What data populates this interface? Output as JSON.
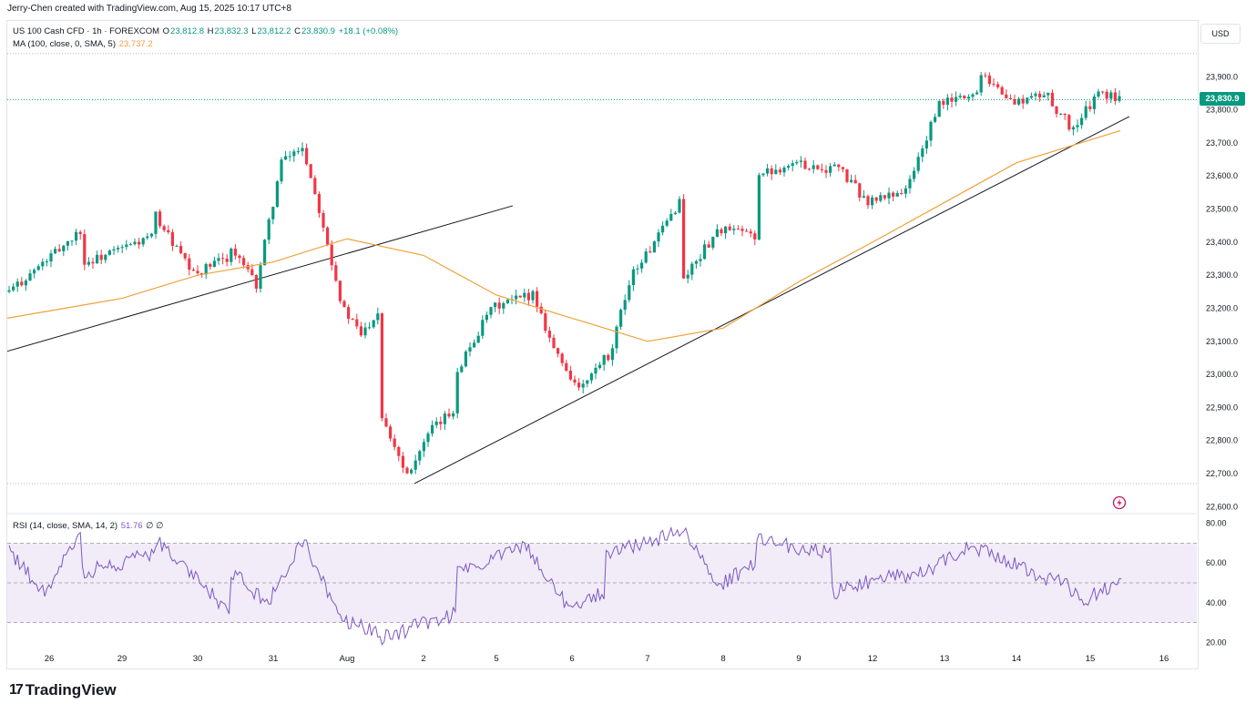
{
  "header": {
    "credit": "Jerry-Chen created with TradingView.com, Aug 15, 2025 10:17 UTC+8"
  },
  "legend": {
    "symbol": "US 100 Cash CFD · 1h · FOREXCOM",
    "o_label": "O",
    "o_value": "23,812.8",
    "h_label": "H",
    "h_value": "23,832.3",
    "l_label": "L",
    "l_value": "23,812.2",
    "c_label": "C",
    "c_value": "23,830.9",
    "change": "+18.1 (+0.08%)",
    "ma_label": "MA (100, close, 0, SMA, 5)",
    "ma_value": "23,737.2",
    "rsi_label": "RSI (14, close, SMA, 14, 2)",
    "rsi_value": "51.76",
    "rsi_extra": "∅ ∅"
  },
  "currency": "USD",
  "last_price_label": "23,830.9",
  "icons": [
    "flash-icon",
    "tradingview-logo-icon"
  ],
  "brand": {
    "wordmark": "TradingView",
    "mark": "17"
  },
  "colors": {
    "up": "#089981",
    "down": "#f23645",
    "ma": "#f0a13a",
    "rsi": "#7e57c2",
    "rsi_band": "#ede7f6",
    "trend": "#131722"
  },
  "chart_data": [
    {
      "type": "candlestick",
      "title": "US 100 Cash CFD · 1h · FOREXCOM",
      "x_tick_labels": [
        "26",
        "29",
        "30",
        "31",
        "Aug",
        "2",
        "5",
        "6",
        "7",
        "8",
        "9",
        "12",
        "13",
        "14",
        "15",
        "16"
      ],
      "y_tick_labels": [
        "23,900.0",
        "23,800.0",
        "23,700.0",
        "23,600.0",
        "23,500.0",
        "23,400.0",
        "23,300.0",
        "23,200.0",
        "23,100.0",
        "23,000.0",
        "22,900.0",
        "22,800.0",
        "22,700.0",
        "22,600.0"
      ],
      "ylim": [
        22590,
        24000
      ],
      "grid": false,
      "last": {
        "open": 23812.8,
        "high": 23832.3,
        "low": 23812.2,
        "close": 23830.9,
        "change": 18.1,
        "change_pct": 0.08
      },
      "anchor_path": [
        {
          "d": "26",
          "p": 23250
        },
        {
          "d": "26",
          "p": 23340
        },
        {
          "d": "26",
          "p": 23440
        },
        {
          "d": "29",
          "p": 23330
        },
        {
          "d": "29",
          "p": 23420
        },
        {
          "d": "30",
          "p": 23480
        },
        {
          "d": "30",
          "p": 23300
        },
        {
          "d": "30",
          "p": 23360
        },
        {
          "d": "31",
          "p": 23380
        },
        {
          "d": "31",
          "p": 23270
        },
        {
          "d": "31",
          "p": 23640
        },
        {
          "d": "31",
          "p": 23700
        },
        {
          "d": "Aug",
          "p": 23660
        },
        {
          "d": "Aug",
          "p": 23450
        },
        {
          "d": "Aug",
          "p": 23200
        },
        {
          "d": "Aug",
          "p": 23120
        },
        {
          "d": "Aug",
          "p": 23200
        },
        {
          "d": "2",
          "p": 22880
        },
        {
          "d": "2",
          "p": 22700
        },
        {
          "d": "2",
          "p": 22830
        },
        {
          "d": "2",
          "p": 22900
        },
        {
          "d": "5",
          "p": 23000
        },
        {
          "d": "5",
          "p": 23200
        },
        {
          "d": "5",
          "p": 23240
        },
        {
          "d": "6",
          "p": 23270
        },
        {
          "d": "6",
          "p": 23070
        },
        {
          "d": "6",
          "p": 22950
        },
        {
          "d": "6",
          "p": 23050
        },
        {
          "d": "7",
          "p": 23000
        },
        {
          "d": "7",
          "p": 23300
        },
        {
          "d": "7",
          "p": 23400
        },
        {
          "d": "7",
          "p": 23530
        },
        {
          "d": "8",
          "p": 23280
        },
        {
          "d": "8",
          "p": 23440
        },
        {
          "d": "8",
          "p": 23420
        },
        {
          "d": "9",
          "p": 23600
        },
        {
          "d": "9",
          "p": 23640
        },
        {
          "d": "9",
          "p": 23620
        },
        {
          "d": "12",
          "p": 23650
        },
        {
          "d": "12",
          "p": 23520
        },
        {
          "d": "12",
          "p": 23560
        },
        {
          "d": "13",
          "p": 23530
        },
        {
          "d": "13",
          "p": 23820
        },
        {
          "d": "13",
          "p": 23850
        },
        {
          "d": "14",
          "p": 23940
        },
        {
          "d": "14",
          "p": 23820
        },
        {
          "d": "14",
          "p": 23850
        },
        {
          "d": "15",
          "p": 23830
        },
        {
          "d": "15",
          "p": 23740
        },
        {
          "d": "15",
          "p": 23850
        },
        {
          "d": "15",
          "p": 23830.9
        }
      ],
      "moving_average": [
        {
          "d": "26",
          "v": 23170
        },
        {
          "d": "29",
          "v": 23230
        },
        {
          "d": "30",
          "v": 23300
        },
        {
          "d": "31",
          "v": 23340
        },
        {
          "d": "Aug",
          "v": 23410
        },
        {
          "d": "2",
          "v": 23360
        },
        {
          "d": "5",
          "v": 23240
        },
        {
          "d": "6",
          "v": 23170
        },
        {
          "d": "7",
          "v": 23100
        },
        {
          "d": "8",
          "v": 23140
        },
        {
          "d": "9",
          "v": 23280
        },
        {
          "d": "12",
          "v": 23400
        },
        {
          "d": "13",
          "v": 23520
        },
        {
          "d": "14",
          "v": 23640
        },
        {
          "d": "15",
          "v": 23737.2
        }
      ],
      "trendlines": [
        {
          "name": "support-1",
          "from": {
            "d": "26",
            "p": 23070
          },
          "to": {
            "d": "5",
            "p": 23510
          }
        },
        {
          "name": "support-2",
          "from": {
            "d": "2",
            "p": 22670
          },
          "to": {
            "d": "15",
            "p": 23780
          }
        }
      ],
      "reference_levels": [
        23970,
        22670
      ]
    },
    {
      "type": "line",
      "title": "RSI (14, close, SMA, 14, 2)",
      "y_tick_labels": [
        "80.00",
        "60.00",
        "40.00",
        "20.00"
      ],
      "ylim": [
        17,
        83
      ],
      "bands": [
        30,
        50,
        70
      ],
      "last": 51.76,
      "anchor_path": [
        {
          "d": "26",
          "v": 65
        },
        {
          "d": "26",
          "v": 45
        },
        {
          "d": "26",
          "v": 75
        },
        {
          "d": "29",
          "v": 55
        },
        {
          "d": "29",
          "v": 65
        },
        {
          "d": "30",
          "v": 72
        },
        {
          "d": "30",
          "v": 35
        },
        {
          "d": "31",
          "v": 55
        },
        {
          "d": "31",
          "v": 40
        },
        {
          "d": "31",
          "v": 75
        },
        {
          "d": "Aug",
          "v": 70
        },
        {
          "d": "Aug",
          "v": 30
        },
        {
          "d": "Aug",
          "v": 25
        },
        {
          "d": "2",
          "v": 22
        },
        {
          "d": "2",
          "v": 35
        },
        {
          "d": "5",
          "v": 55
        },
        {
          "d": "5",
          "v": 70
        },
        {
          "d": "6",
          "v": 65
        },
        {
          "d": "6",
          "v": 38
        },
        {
          "d": "6",
          "v": 45
        },
        {
          "d": "7",
          "v": 65
        },
        {
          "d": "7",
          "v": 75
        },
        {
          "d": "8",
          "v": 78
        },
        {
          "d": "8",
          "v": 48
        },
        {
          "d": "8",
          "v": 60
        },
        {
          "d": "9",
          "v": 72
        },
        {
          "d": "9",
          "v": 65
        },
        {
          "d": "12",
          "v": 45
        },
        {
          "d": "12",
          "v": 55
        },
        {
          "d": "13",
          "v": 50
        },
        {
          "d": "13",
          "v": 70
        },
        {
          "d": "14",
          "v": 68
        },
        {
          "d": "14",
          "v": 52
        },
        {
          "d": "15",
          "v": 55
        },
        {
          "d": "15",
          "v": 42
        },
        {
          "d": "15",
          "v": 51.76
        }
      ]
    }
  ]
}
